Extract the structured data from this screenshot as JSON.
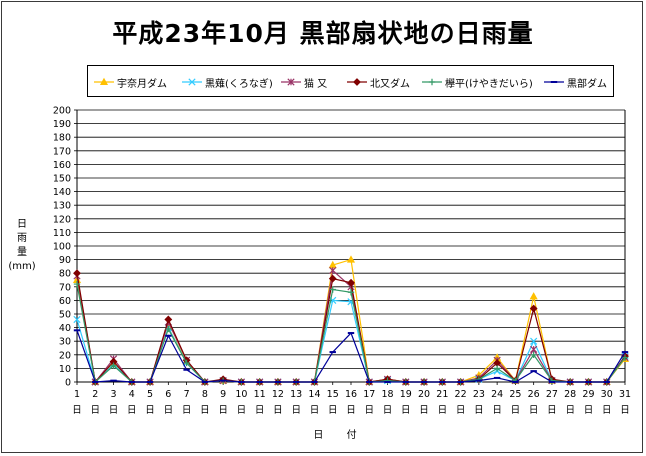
{
  "title": "平成23年10月 黒部扇状地の日雨量",
  "ylabel_lines": [
    "日",
    "雨",
    "量",
    "(mm)"
  ],
  "xlabel": "日 付",
  "chart_data": {
    "type": "line",
    "title": "平成23年10月 黒部扇状地の日雨量",
    "xlabel": "日 付",
    "ylabel": "日雨量 (mm)",
    "ylim": [
      0,
      200
    ],
    "ytick_step": 10,
    "grid": true,
    "legend_position": "top",
    "x": [
      1,
      2,
      3,
      4,
      5,
      6,
      7,
      8,
      9,
      10,
      11,
      12,
      13,
      14,
      15,
      16,
      17,
      18,
      19,
      20,
      21,
      22,
      23,
      24,
      25,
      26,
      27,
      28,
      29,
      30,
      31
    ],
    "xtick_suffix": "日",
    "series": [
      {
        "name": "宇奈月ダム",
        "color": "#FFC000",
        "marker": "triangle",
        "values": [
          75,
          0,
          14,
          0,
          0,
          40,
          15,
          0,
          1,
          0,
          0,
          0,
          0,
          0,
          86,
          90,
          0,
          2,
          0,
          0,
          0,
          0,
          5,
          18,
          1,
          63,
          1,
          0,
          0,
          0,
          17
        ]
      },
      {
        "name": "黒薙(くろなぎ)",
        "color": "#33CCFF",
        "marker": "x",
        "values": [
          46,
          0,
          13,
          0,
          0,
          40,
          14,
          0,
          1,
          0,
          0,
          0,
          0,
          0,
          60,
          59,
          0,
          1,
          0,
          0,
          0,
          0,
          2,
          8,
          1,
          30,
          1,
          0,
          0,
          0,
          19
        ]
      },
      {
        "name": "猫 又",
        "color": "#993366",
        "marker": "star",
        "values": [
          78,
          0,
          17,
          0,
          0,
          44,
          16,
          0,
          1,
          0,
          0,
          0,
          0,
          0,
          82,
          70,
          0,
          2,
          0,
          0,
          0,
          0,
          3,
          16,
          1,
          24,
          1,
          0,
          0,
          0,
          18
        ]
      },
      {
        "name": "北又ダム",
        "color": "#800000",
        "marker": "diamond",
        "values": [
          80,
          0,
          15,
          0,
          0,
          46,
          16,
          0,
          2,
          0,
          0,
          0,
          0,
          0,
          76,
          73,
          0,
          2,
          0,
          0,
          0,
          0,
          2,
          14,
          1,
          54,
          2,
          0,
          0,
          0,
          19
        ]
      },
      {
        "name": "欅平(けやきだいら)",
        "color": "#339966",
        "marker": "plus",
        "values": [
          72,
          0,
          12,
          0,
          0,
          39,
          14,
          0,
          1,
          0,
          0,
          0,
          0,
          0,
          68,
          66,
          0,
          1,
          0,
          0,
          0,
          0,
          2,
          10,
          1,
          20,
          1,
          0,
          0,
          0,
          18
        ]
      },
      {
        "name": "黒部ダム",
        "color": "#000099",
        "marker": "dash",
        "values": [
          38,
          0,
          1,
          0,
          0,
          34,
          9,
          0,
          1,
          0,
          0,
          0,
          0,
          0,
          22,
          36,
          0,
          0,
          0,
          0,
          0,
          0,
          1,
          3,
          0,
          8,
          0,
          0,
          0,
          0,
          22
        ]
      }
    ]
  }
}
